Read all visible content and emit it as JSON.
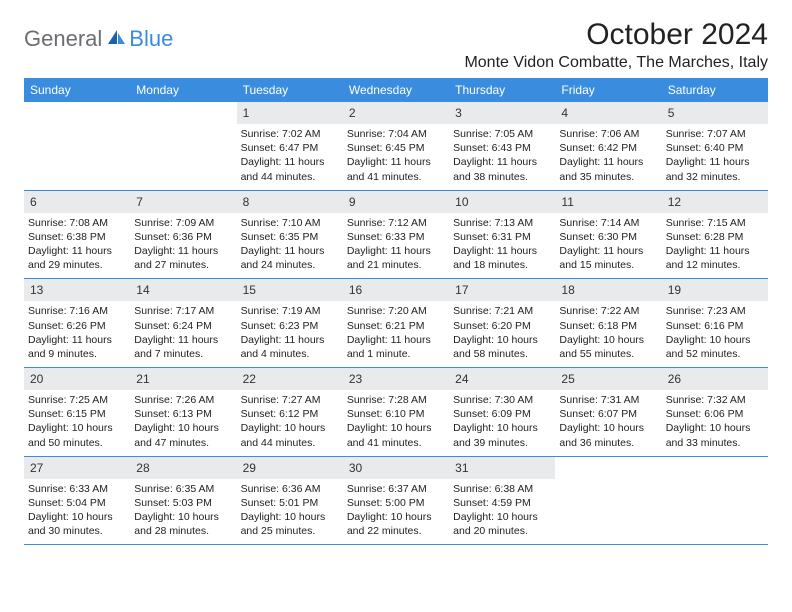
{
  "logo": {
    "part1": "General",
    "part2": "Blue"
  },
  "title": "October 2024",
  "location": "Monte Vidon Combatte, The Marches, Italy",
  "colors": {
    "header_bg": "#3a8dde",
    "header_text": "#ffffff",
    "daynum_bg": "#e8eaec",
    "body_text": "#222222",
    "logo_gray": "#6d6e71",
    "logo_blue": "#3a8dde",
    "row_border": "#3a8dde"
  },
  "weekdays": [
    "Sunday",
    "Monday",
    "Tuesday",
    "Wednesday",
    "Thursday",
    "Friday",
    "Saturday"
  ],
  "label_sunrise": "Sunrise:",
  "label_sunset": "Sunset:",
  "label_daylight": "Daylight:",
  "weeks": [
    [
      null,
      null,
      {
        "n": "1",
        "sr": "7:02 AM",
        "ss": "6:47 PM",
        "d1": "11 hours",
        "d2": "and 44 minutes."
      },
      {
        "n": "2",
        "sr": "7:04 AM",
        "ss": "6:45 PM",
        "d1": "11 hours",
        "d2": "and 41 minutes."
      },
      {
        "n": "3",
        "sr": "7:05 AM",
        "ss": "6:43 PM",
        "d1": "11 hours",
        "d2": "and 38 minutes."
      },
      {
        "n": "4",
        "sr": "7:06 AM",
        "ss": "6:42 PM",
        "d1": "11 hours",
        "d2": "and 35 minutes."
      },
      {
        "n": "5",
        "sr": "7:07 AM",
        "ss": "6:40 PM",
        "d1": "11 hours",
        "d2": "and 32 minutes."
      }
    ],
    [
      {
        "n": "6",
        "sr": "7:08 AM",
        "ss": "6:38 PM",
        "d1": "11 hours",
        "d2": "and 29 minutes."
      },
      {
        "n": "7",
        "sr": "7:09 AM",
        "ss": "6:36 PM",
        "d1": "11 hours",
        "d2": "and 27 minutes."
      },
      {
        "n": "8",
        "sr": "7:10 AM",
        "ss": "6:35 PM",
        "d1": "11 hours",
        "d2": "and 24 minutes."
      },
      {
        "n": "9",
        "sr": "7:12 AM",
        "ss": "6:33 PM",
        "d1": "11 hours",
        "d2": "and 21 minutes."
      },
      {
        "n": "10",
        "sr": "7:13 AM",
        "ss": "6:31 PM",
        "d1": "11 hours",
        "d2": "and 18 minutes."
      },
      {
        "n": "11",
        "sr": "7:14 AM",
        "ss": "6:30 PM",
        "d1": "11 hours",
        "d2": "and 15 minutes."
      },
      {
        "n": "12",
        "sr": "7:15 AM",
        "ss": "6:28 PM",
        "d1": "11 hours",
        "d2": "and 12 minutes."
      }
    ],
    [
      {
        "n": "13",
        "sr": "7:16 AM",
        "ss": "6:26 PM",
        "d1": "11 hours",
        "d2": "and 9 minutes."
      },
      {
        "n": "14",
        "sr": "7:17 AM",
        "ss": "6:24 PM",
        "d1": "11 hours",
        "d2": "and 7 minutes."
      },
      {
        "n": "15",
        "sr": "7:19 AM",
        "ss": "6:23 PM",
        "d1": "11 hours",
        "d2": "and 4 minutes."
      },
      {
        "n": "16",
        "sr": "7:20 AM",
        "ss": "6:21 PM",
        "d1": "11 hours",
        "d2": "and 1 minute."
      },
      {
        "n": "17",
        "sr": "7:21 AM",
        "ss": "6:20 PM",
        "d1": "10 hours",
        "d2": "and 58 minutes."
      },
      {
        "n": "18",
        "sr": "7:22 AM",
        "ss": "6:18 PM",
        "d1": "10 hours",
        "d2": "and 55 minutes."
      },
      {
        "n": "19",
        "sr": "7:23 AM",
        "ss": "6:16 PM",
        "d1": "10 hours",
        "d2": "and 52 minutes."
      }
    ],
    [
      {
        "n": "20",
        "sr": "7:25 AM",
        "ss": "6:15 PM",
        "d1": "10 hours",
        "d2": "and 50 minutes."
      },
      {
        "n": "21",
        "sr": "7:26 AM",
        "ss": "6:13 PM",
        "d1": "10 hours",
        "d2": "and 47 minutes."
      },
      {
        "n": "22",
        "sr": "7:27 AM",
        "ss": "6:12 PM",
        "d1": "10 hours",
        "d2": "and 44 minutes."
      },
      {
        "n": "23",
        "sr": "7:28 AM",
        "ss": "6:10 PM",
        "d1": "10 hours",
        "d2": "and 41 minutes."
      },
      {
        "n": "24",
        "sr": "7:30 AM",
        "ss": "6:09 PM",
        "d1": "10 hours",
        "d2": "and 39 minutes."
      },
      {
        "n": "25",
        "sr": "7:31 AM",
        "ss": "6:07 PM",
        "d1": "10 hours",
        "d2": "and 36 minutes."
      },
      {
        "n": "26",
        "sr": "7:32 AM",
        "ss": "6:06 PM",
        "d1": "10 hours",
        "d2": "and 33 minutes."
      }
    ],
    [
      {
        "n": "27",
        "sr": "6:33 AM",
        "ss": "5:04 PM",
        "d1": "10 hours",
        "d2": "and 30 minutes."
      },
      {
        "n": "28",
        "sr": "6:35 AM",
        "ss": "5:03 PM",
        "d1": "10 hours",
        "d2": "and 28 minutes."
      },
      {
        "n": "29",
        "sr": "6:36 AM",
        "ss": "5:01 PM",
        "d1": "10 hours",
        "d2": "and 25 minutes."
      },
      {
        "n": "30",
        "sr": "6:37 AM",
        "ss": "5:00 PM",
        "d1": "10 hours",
        "d2": "and 22 minutes."
      },
      {
        "n": "31",
        "sr": "6:38 AM",
        "ss": "4:59 PM",
        "d1": "10 hours",
        "d2": "and 20 minutes."
      },
      null,
      null
    ]
  ]
}
